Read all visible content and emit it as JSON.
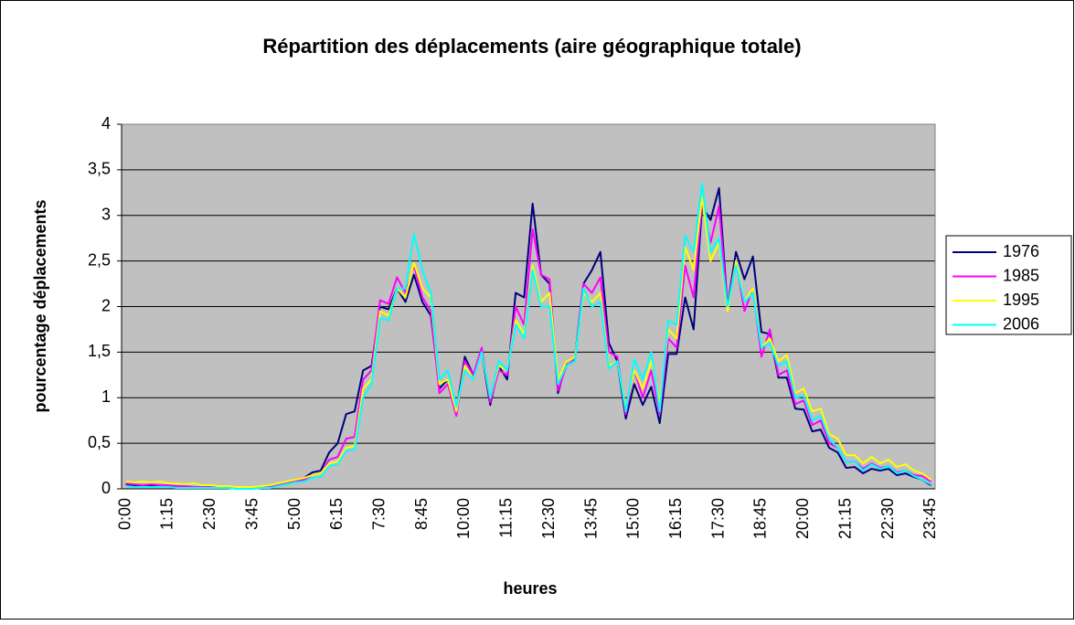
{
  "chart_data": {
    "type": "line",
    "title": "Répartition des déplacements (aire géographique totale)",
    "xlabel": "heures",
    "ylabel": "pourcentage déplacements",
    "categories": [
      "0:00",
      null,
      null,
      null,
      null,
      "1:15",
      null,
      null,
      null,
      null,
      "2:30",
      null,
      null,
      null,
      null,
      "3:45",
      null,
      null,
      null,
      null,
      "5:00",
      null,
      null,
      null,
      null,
      "6:15",
      null,
      null,
      null,
      null,
      "7:30",
      null,
      null,
      null,
      null,
      "8:45",
      null,
      null,
      null,
      null,
      "10:00",
      null,
      null,
      null,
      null,
      "11:15",
      null,
      null,
      null,
      null,
      "12:30",
      null,
      null,
      null,
      null,
      "13:45",
      null,
      null,
      null,
      null,
      "15:00",
      null,
      null,
      null,
      null,
      "16:15",
      null,
      null,
      null,
      null,
      "17:30",
      null,
      null,
      null,
      null,
      "18:45",
      null,
      null,
      null,
      null,
      "20:00",
      null,
      null,
      null,
      null,
      "21:15",
      null,
      null,
      null,
      null,
      "22:30",
      null,
      null,
      null,
      null,
      "23:45"
    ],
    "series": [
      {
        "name": "1976",
        "color": "#000080",
        "values": [
          0.05,
          0.04,
          0.03,
          0.03,
          0.03,
          0.02,
          0.02,
          0.02,
          0.02,
          0.01,
          0.01,
          0.01,
          0.01,
          0.01,
          0.01,
          0.01,
          0.02,
          0.03,
          0.05,
          0.07,
          0.1,
          0.12,
          0.18,
          0.2,
          0.4,
          0.5,
          0.82,
          0.85,
          1.3,
          1.35,
          2.0,
          1.97,
          2.2,
          2.05,
          2.35,
          2.05,
          1.9,
          1.1,
          1.2,
          0.85,
          1.45,
          1.25,
          1.5,
          0.92,
          1.35,
          1.2,
          2.15,
          2.1,
          3.13,
          2.35,
          2.25,
          1.05,
          1.4,
          1.45,
          2.25,
          2.4,
          2.6,
          1.6,
          1.4,
          0.77,
          1.15,
          0.92,
          1.12,
          0.72,
          1.48,
          1.48,
          2.1,
          1.75,
          3.1,
          2.95,
          3.3,
          2.0,
          2.6,
          2.3,
          2.55,
          1.72,
          1.7,
          1.22,
          1.22,
          0.88,
          0.87,
          0.63,
          0.65,
          0.45,
          0.4,
          0.23,
          0.24,
          0.17,
          0.22,
          0.2,
          0.22,
          0.15,
          0.17,
          0.13,
          0.1,
          0.04
        ]
      },
      {
        "name": "1985",
        "color": "#ff00ff",
        "values": [
          0.06,
          0.05,
          0.04,
          0.05,
          0.04,
          0.04,
          0.03,
          0.03,
          0.02,
          0.02,
          0.02,
          0.01,
          0.01,
          0.01,
          0.01,
          0.01,
          0.02,
          0.02,
          0.04,
          0.06,
          0.08,
          0.1,
          0.15,
          0.17,
          0.32,
          0.35,
          0.55,
          0.57,
          1.2,
          1.3,
          2.07,
          2.03,
          2.32,
          2.15,
          2.45,
          2.1,
          1.95,
          1.05,
          1.15,
          0.8,
          1.4,
          1.25,
          1.55,
          0.95,
          1.3,
          1.25,
          2.0,
          1.8,
          2.85,
          2.35,
          2.3,
          1.08,
          1.35,
          1.42,
          2.25,
          2.15,
          2.32,
          1.5,
          1.45,
          0.82,
          1.3,
          1.0,
          1.3,
          0.82,
          1.65,
          1.55,
          2.45,
          2.1,
          3.15,
          2.7,
          3.1,
          2.0,
          2.5,
          1.95,
          2.2,
          1.45,
          1.75,
          1.25,
          1.3,
          0.93,
          0.97,
          0.7,
          0.75,
          0.5,
          0.45,
          0.3,
          0.3,
          0.22,
          0.28,
          0.23,
          0.25,
          0.18,
          0.2,
          0.15,
          0.14,
          0.08
        ]
      },
      {
        "name": "1995",
        "color": "#ffff00",
        "values": [
          0.08,
          0.07,
          0.08,
          0.07,
          0.08,
          0.06,
          0.06,
          0.05,
          0.06,
          0.04,
          0.04,
          0.03,
          0.03,
          0.02,
          0.02,
          0.02,
          0.03,
          0.04,
          0.06,
          0.08,
          0.1,
          0.12,
          0.15,
          0.17,
          0.28,
          0.3,
          0.45,
          0.47,
          1.1,
          1.2,
          1.95,
          1.9,
          2.2,
          2.1,
          2.48,
          2.2,
          2.1,
          1.15,
          1.2,
          0.85,
          1.35,
          1.2,
          1.5,
          1.0,
          1.35,
          1.3,
          1.85,
          1.7,
          2.45,
          2.05,
          2.15,
          1.2,
          1.4,
          1.45,
          2.15,
          2.05,
          2.15,
          1.35,
          1.4,
          0.88,
          1.3,
          1.1,
          1.4,
          0.95,
          1.75,
          1.65,
          2.65,
          2.4,
          3.2,
          2.5,
          2.7,
          1.95,
          2.5,
          2.05,
          2.2,
          1.55,
          1.65,
          1.4,
          1.47,
          1.05,
          1.1,
          0.85,
          0.88,
          0.6,
          0.55,
          0.37,
          0.37,
          0.28,
          0.35,
          0.28,
          0.32,
          0.24,
          0.27,
          0.2,
          0.17,
          0.1
        ]
      },
      {
        "name": "2006",
        "color": "#00ffff",
        "values": [
          0.03,
          0.02,
          0.02,
          0.02,
          0.02,
          0.02,
          0.01,
          0.01,
          0.01,
          0.01,
          0.01,
          0.01,
          0.01,
          0.0,
          0.0,
          0.0,
          0.01,
          0.01,
          0.03,
          0.05,
          0.07,
          0.08,
          0.12,
          0.13,
          0.25,
          0.27,
          0.42,
          0.43,
          1.0,
          1.15,
          1.87,
          1.85,
          2.2,
          2.2,
          2.8,
          2.4,
          2.15,
          1.2,
          1.3,
          0.9,
          1.3,
          1.2,
          1.5,
          1.0,
          1.4,
          1.3,
          1.8,
          1.65,
          2.4,
          2.0,
          2.0,
          1.15,
          1.35,
          1.4,
          2.2,
          2.0,
          2.05,
          1.32,
          1.4,
          0.85,
          1.42,
          1.2,
          1.5,
          0.85,
          1.85,
          1.8,
          2.78,
          2.6,
          3.35,
          2.6,
          2.75,
          2.0,
          2.45,
          2.05,
          2.15,
          1.55,
          1.6,
          1.35,
          1.4,
          1.0,
          1.02,
          0.75,
          0.8,
          0.55,
          0.45,
          0.3,
          0.3,
          0.2,
          0.27,
          0.22,
          0.25,
          0.17,
          0.2,
          0.14,
          0.1,
          0.05
        ]
      }
    ],
    "ylim": [
      0,
      4
    ],
    "yticks": [
      0,
      {
        "value": 0.5,
        "label": "0,5"
      },
      1,
      {
        "value": 1.5,
        "label": "1,5"
      },
      2,
      {
        "value": 2.5,
        "label": "2,5"
      },
      3,
      {
        "value": 3.5,
        "label": "3,5"
      },
      4
    ],
    "grid": true,
    "legend": "right"
  }
}
